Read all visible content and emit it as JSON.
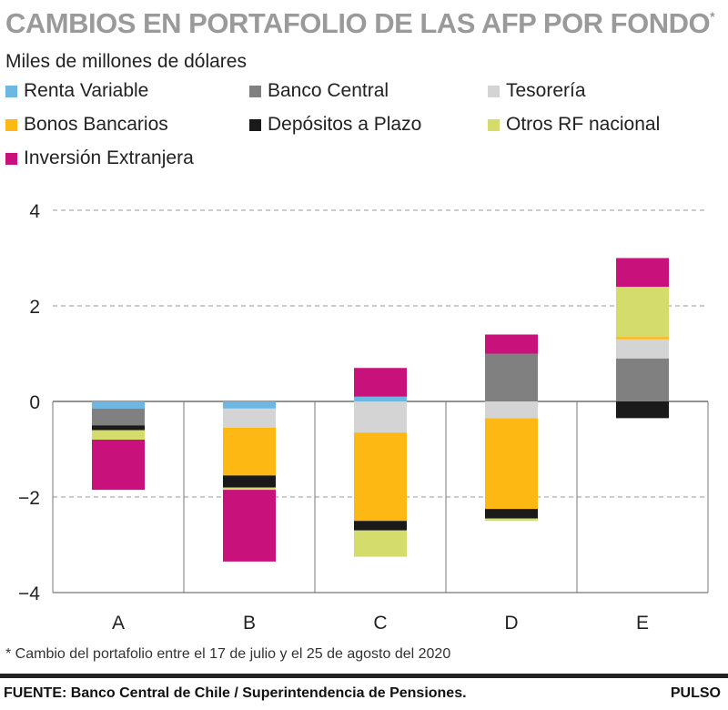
{
  "header": {
    "title": "CAMBIOS EN PORTAFOLIO DE LAS AFP POR FONDO",
    "title_mark": "*",
    "subtitle": "Miles de millones de dólares"
  },
  "footnote": "* Cambio del portafolio entre el 17 de julio y el 25 de agosto del 2020",
  "footer": {
    "source": "FUENTE: Banco Central de Chile / Superintendencia de Pensiones.",
    "brand": "PULSO"
  },
  "chart_data": {
    "type": "bar",
    "stacked": true,
    "categories": [
      "A",
      "B",
      "C",
      "D",
      "E"
    ],
    "ylim": [
      -4,
      4
    ],
    "yticks": [
      4,
      2,
      0,
      -2,
      -4
    ],
    "grid": true,
    "legend_position": "top",
    "series": [
      {
        "name": "Renta Variable",
        "color": "#6db8e3",
        "values": [
          -0.15,
          -0.15,
          0.1,
          0,
          0
        ]
      },
      {
        "name": "Banco Central",
        "color": "#808080",
        "values": [
          -0.35,
          0,
          0,
          1.0,
          0.9
        ]
      },
      {
        "name": "Tesorería",
        "color": "#d4d4d4",
        "values": [
          0,
          -0.4,
          -0.65,
          -0.35,
          0.4
        ]
      },
      {
        "name": "Bonos Bancarios",
        "color": "#fdb813",
        "values": [
          0,
          -1.0,
          -1.85,
          -1.9,
          0.05
        ]
      },
      {
        "name": "Depósitos a Plazo",
        "color": "#1a1a1a",
        "values": [
          -0.1,
          -0.25,
          -0.2,
          -0.2,
          -0.35
        ]
      },
      {
        "name": "Otros RF nacional",
        "color": "#d4dc6c",
        "values": [
          -0.2,
          -0.05,
          -0.55,
          -0.05,
          1.05
        ]
      },
      {
        "name": "Inversión Extranjera",
        "color": "#c8117a",
        "values": [
          -1.05,
          -1.5,
          0.6,
          0.4,
          0.6
        ]
      }
    ]
  }
}
